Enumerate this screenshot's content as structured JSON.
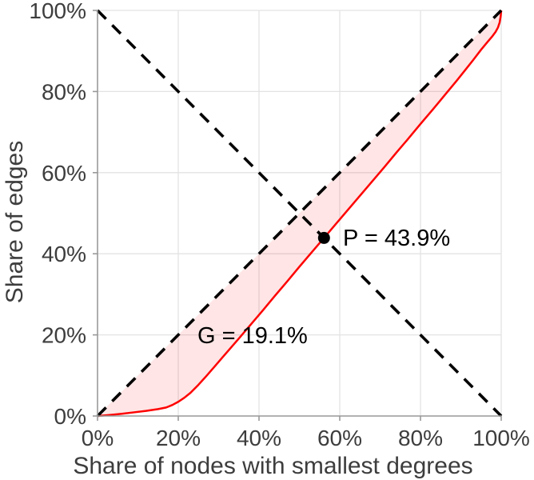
{
  "figure": {
    "background": "#ffffff"
  },
  "chart_data": {
    "type": "line",
    "title": "",
    "xlabel": "Share of nodes with smallest degrees",
    "ylabel": "Share of edges",
    "xlim": [
      0,
      100
    ],
    "ylim": [
      0,
      100
    ],
    "grid": true,
    "x_axis": {
      "tick_values": [
        0,
        20,
        40,
        60,
        80,
        100
      ],
      "tick_labels": [
        "0%",
        "20%",
        "40%",
        "60%",
        "80%",
        "100%"
      ]
    },
    "y_axis": {
      "tick_values": [
        0,
        20,
        40,
        60,
        80,
        100
      ],
      "tick_labels": [
        "0%",
        "20%",
        "40%",
        "60%",
        "80%",
        "100%"
      ]
    },
    "series": [
      {
        "name": "lorenz-curve",
        "style": "solid",
        "color": "#ff0000",
        "width": 2.5,
        "points": [
          [
            0,
            0
          ],
          [
            3,
            0.25
          ],
          [
            6,
            0.55
          ],
          [
            9,
            0.9
          ],
          [
            12,
            1.25
          ],
          [
            15,
            1.7
          ],
          [
            17,
            2.1
          ],
          [
            18.5,
            2.7
          ],
          [
            20,
            3.5
          ],
          [
            21.5,
            4.5
          ],
          [
            23,
            5.7
          ],
          [
            25,
            7.7
          ],
          [
            27,
            9.9
          ],
          [
            29,
            12.2
          ],
          [
            31,
            14.5
          ],
          [
            33,
            16.8
          ],
          [
            35,
            19.1
          ],
          [
            38,
            22.6
          ],
          [
            41,
            26.1
          ],
          [
            44,
            29.7
          ],
          [
            47,
            33.2
          ],
          [
            50,
            36.8
          ],
          [
            53,
            40.3
          ],
          [
            56.1,
            43.9
          ],
          [
            59,
            47.3
          ],
          [
            62,
            50.8
          ],
          [
            65,
            54.3
          ],
          [
            68,
            57.8
          ],
          [
            71,
            61.3
          ],
          [
            74,
            64.9
          ],
          [
            77,
            68.4
          ],
          [
            80,
            72.0
          ],
          [
            83,
            75.5
          ],
          [
            86,
            79.1
          ],
          [
            89,
            82.7
          ],
          [
            91,
            85.2
          ],
          [
            93,
            87.7
          ],
          [
            95,
            90.3
          ],
          [
            96.5,
            92.1
          ],
          [
            97.7,
            93.5
          ],
          [
            98.6,
            94.7
          ],
          [
            99.2,
            95.8
          ],
          [
            99.6,
            97.0
          ],
          [
            99.85,
            98.4
          ],
          [
            100,
            100
          ]
        ]
      },
      {
        "name": "equality-diagonal",
        "style": "dashed",
        "color": "#000000",
        "width": 3.6,
        "points": [
          [
            0,
            0
          ],
          [
            100,
            100
          ]
        ]
      },
      {
        "name": "anti-diagonal",
        "style": "dashed",
        "color": "#000000",
        "width": 3.6,
        "points": [
          [
            0,
            100
          ],
          [
            100,
            0
          ]
        ]
      }
    ],
    "fill_between": {
      "between": [
        "equality-diagonal",
        "lorenz-curve"
      ],
      "color": "#ff0000",
      "opacity": 0.1
    },
    "marker": {
      "name": "point-P",
      "x": 56.1,
      "y": 43.9,
      "radius": 7.5,
      "color": "#000000"
    },
    "annotations": [
      {
        "id": "p-annotation",
        "text": "P = 43.9%",
        "x": 60.8,
        "y": 44.0,
        "anchor": "start"
      },
      {
        "id": "g-annotation",
        "text": "G = 19.1%",
        "x": 24.75,
        "y": 19.95,
        "anchor": "start"
      }
    ],
    "colors": {
      "grid": "#e3e3e3",
      "spine": "#999999",
      "tick_text": "#3d3d3d",
      "label_text": "#3d3d3d",
      "annotation_text": "#000000"
    },
    "legend": null
  }
}
